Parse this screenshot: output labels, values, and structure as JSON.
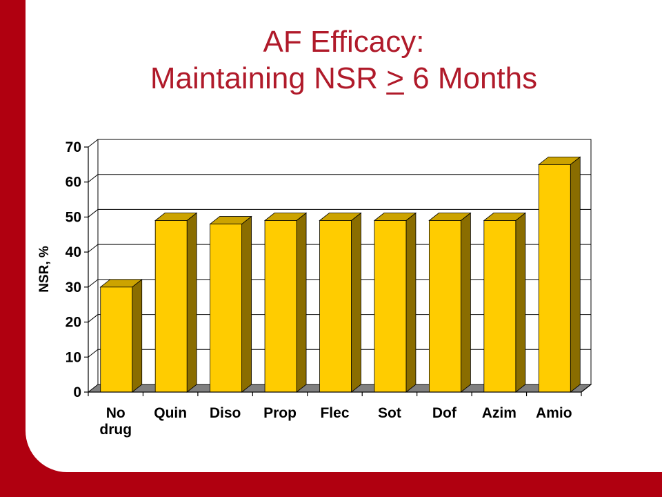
{
  "title_line1": "AF Efficacy:",
  "title_line2_pre": "Maintaining NSR ",
  "title_line2_sym": ">",
  "title_line2_post": " 6 Months",
  "chart_data": {
    "type": "bar",
    "title": "AF Efficacy: Maintaining NSR > 6 Months",
    "xlabel": "",
    "ylabel": "NSR, %",
    "ylim": [
      0,
      70
    ],
    "yticks": [
      0,
      10,
      20,
      30,
      40,
      50,
      60,
      70
    ],
    "grid": true,
    "categories": [
      [
        "No",
        "drug"
      ],
      [
        "Quin"
      ],
      [
        "Diso"
      ],
      [
        "Prop"
      ],
      [
        "Flec"
      ],
      [
        "Sot"
      ],
      [
        "Dof"
      ],
      [
        "Azim"
      ],
      [
        "Amio"
      ]
    ],
    "values": [
      30,
      49,
      48,
      49,
      49,
      49,
      49,
      49,
      65
    ],
    "colors": {
      "bar_front": "#ffcc00",
      "bar_side": "#8a6d00",
      "bar_top": "#cca300",
      "floor": "#808080",
      "frame": "#b00010",
      "title": "#b01a2a"
    }
  }
}
